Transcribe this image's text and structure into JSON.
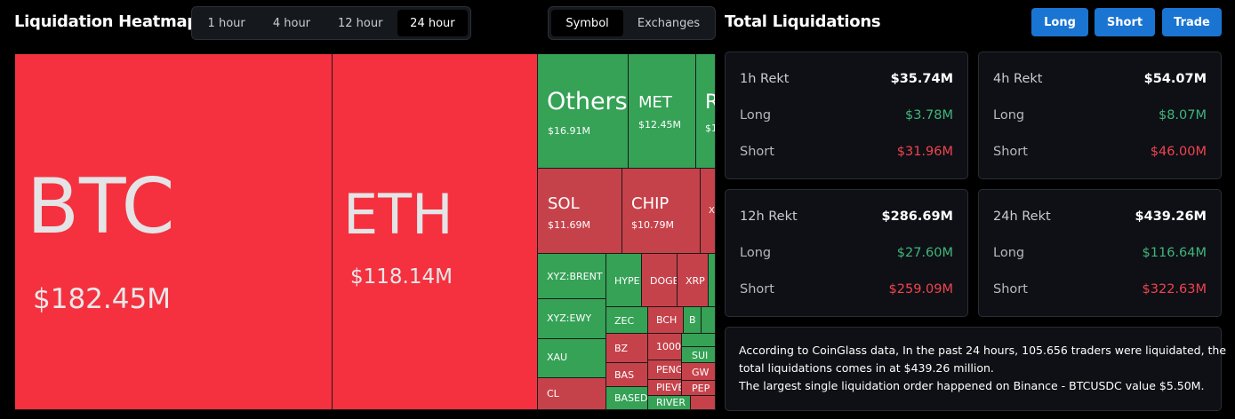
{
  "heatmap": {
    "title": "Liquidation Heatmap",
    "time_tabs": [
      {
        "label": "1 hour",
        "active": false
      },
      {
        "label": "4 hour",
        "active": false
      },
      {
        "label": "12 hour",
        "active": false
      },
      {
        "label": "24 hour",
        "active": true
      }
    ],
    "group_tabs": [
      {
        "label": "Symbol",
        "active": true
      },
      {
        "label": "Exchanges",
        "active": false
      }
    ],
    "tiles": {
      "btc": {
        "symbol": "BTC",
        "value": "$182.45M"
      },
      "eth": {
        "symbol": "ETH",
        "value": "$118.14M"
      },
      "others": {
        "symbol": "Others",
        "value": "$16.91M"
      },
      "met": {
        "symbol": "MET",
        "value": "$12.45M"
      },
      "r_tile": {
        "symbol": "R",
        "value": "$1"
      },
      "sol": {
        "symbol": "SOL",
        "value": "$11.69M"
      },
      "chip": {
        "symbol": "CHIP",
        "value": "$10.79M"
      },
      "x_tile": {
        "symbol": "X"
      },
      "xyz_brent": {
        "symbol": "XYZ:BRENT"
      },
      "hype": {
        "symbol": "HYPE"
      },
      "doge": {
        "symbol": "DOGE"
      },
      "xrp": {
        "symbol": "XRP"
      },
      "xyz_ewy": {
        "symbol": "XYZ:EWY"
      },
      "zec": {
        "symbol": "ZEC"
      },
      "bch": {
        "symbol": "BCH"
      },
      "b_small": {
        "symbol": "B"
      },
      "xau": {
        "symbol": "XAU"
      },
      "bz": {
        "symbol": "BZ"
      },
      "k1000": {
        "symbol": "1000"
      },
      "bas": {
        "symbol": "BAS"
      },
      "peng": {
        "symbol": "PENG"
      },
      "sui": {
        "symbol": "SUI"
      },
      "gw": {
        "symbol": "GW"
      },
      "cl": {
        "symbol": "CL"
      },
      "based": {
        "symbol": "BASED"
      },
      "pieve": {
        "symbol": "PIEVE"
      },
      "pep": {
        "symbol": "PEP"
      },
      "river": {
        "symbol": "RIVER"
      }
    },
    "colors": {
      "loss_red": "#f5313f",
      "red": "#c6424b",
      "green": "#35a256"
    }
  },
  "totals": {
    "title": "Total Liquidations",
    "buttons": {
      "long": "Long",
      "short": "Short",
      "trade": "Trade"
    },
    "cards": {
      "h1": {
        "title": "1h Rekt",
        "total": "$35.74M",
        "long_label": "Long",
        "long": "$3.78M",
        "short_label": "Short",
        "short": "$31.96M"
      },
      "h4": {
        "title": "4h Rekt",
        "total": "$54.07M",
        "long_label": "Long",
        "long": "$8.07M",
        "short_label": "Short",
        "short": "$46.00M"
      },
      "h12": {
        "title": "12h Rekt",
        "total": "$286.69M",
        "long_label": "Long",
        "long": "$27.60M",
        "short_label": "Short",
        "short": "$259.09M"
      },
      "h24": {
        "title": "24h Rekt",
        "total": "$439.26M",
        "long_label": "Long",
        "long": "$116.64M",
        "short_label": "Short",
        "short": "$322.63M"
      }
    },
    "info": {
      "line1": "According to CoinGlass data, In the past 24 hours, 105.656 traders were liquidated, the",
      "line2": "total liquidations comes in at $439.26 million.",
      "line3": "The largest single liquidation order happened on Binance - BTCUSDC value $5.50M."
    }
  }
}
